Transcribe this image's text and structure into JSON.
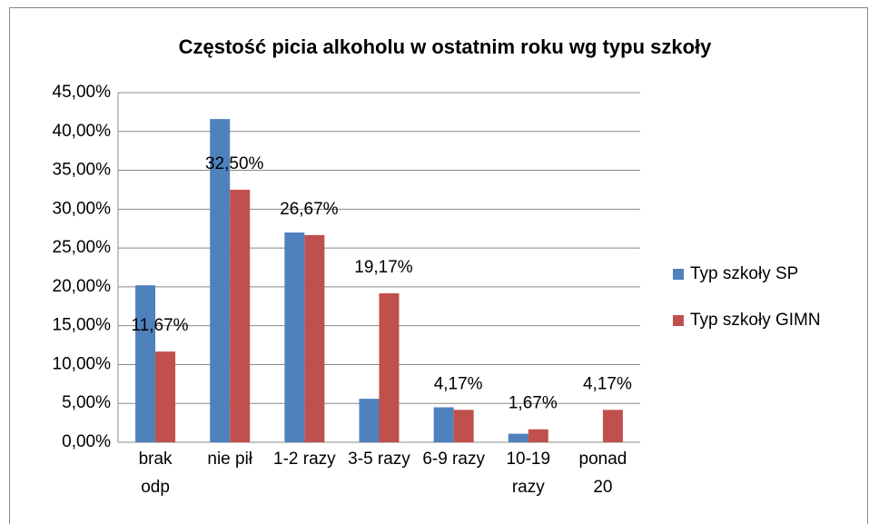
{
  "chart_data": {
    "type": "bar",
    "title": "Częstość picia alkoholu w ostatnim roku wg typu szkoły",
    "categories": [
      "brak odp",
      "nie pił",
      "1-2 razy",
      "3-5 razy",
      "6-9 razy",
      "10-19 razy",
      "ponad 20"
    ],
    "series": [
      {
        "name": "Typ szkoły SP",
        "color": "#4f81bd",
        "values": [
          20.2,
          41.6,
          27.0,
          5.6,
          4.5,
          1.1,
          0
        ]
      },
      {
        "name": "Typ szkoły GIMN",
        "color": "#c0504d",
        "values": [
          11.67,
          32.5,
          26.67,
          19.17,
          4.17,
          1.67,
          4.17
        ],
        "value_labels": [
          "11,67%",
          "32,50%",
          "26,67%",
          "19,17%",
          "4,17%",
          "1,67%",
          "4,17%"
        ]
      }
    ],
    "ylim": [
      0,
      45
    ],
    "yticks": [
      {
        "value": 0,
        "label": "0,00%"
      },
      {
        "value": 5,
        "label": "5,00%"
      },
      {
        "value": 10,
        "label": "10,00%"
      },
      {
        "value": 15,
        "label": "15,00%"
      },
      {
        "value": 20,
        "label": "20,00%"
      },
      {
        "value": 25,
        "label": "25,00%"
      },
      {
        "value": 30,
        "label": "30,00%"
      },
      {
        "value": 35,
        "label": "35,00%"
      },
      {
        "value": 40,
        "label": "40,00%"
      },
      {
        "value": 45,
        "label": "45,00%"
      }
    ],
    "grid": true,
    "legend": "right"
  }
}
